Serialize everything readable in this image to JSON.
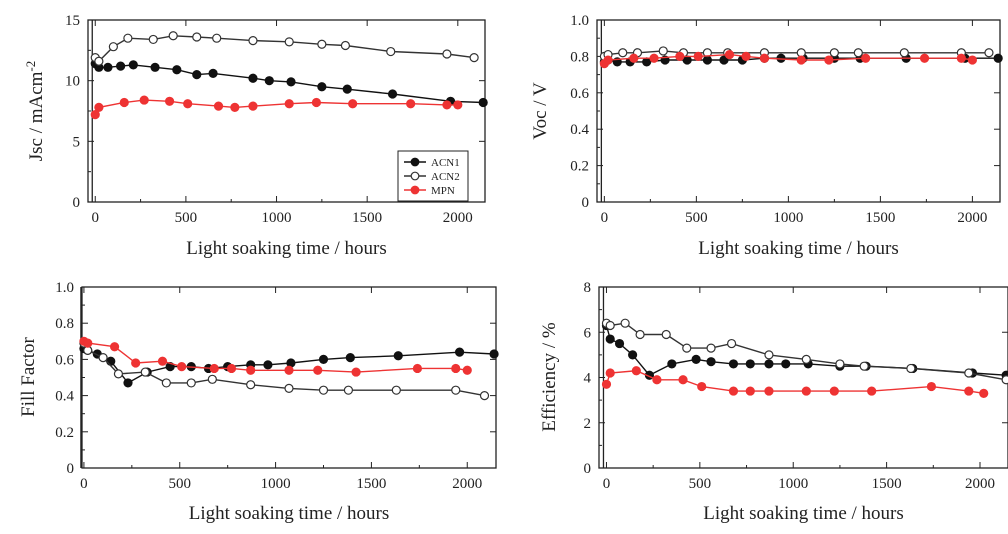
{
  "colors": {
    "acn1": "#111111",
    "acn2": "#333333",
    "mpn": "#ee3333",
    "axis": "#222222"
  },
  "legend": {
    "entries": [
      "ACN1",
      "ACN2",
      "MPN"
    ]
  },
  "chart_data": [
    {
      "id": "jsc",
      "type": "line",
      "ylabel": "Jsc / mAcm",
      "ylabel_sup": "-2",
      "xlabel": "Light soaking time / hours",
      "xlim": [
        -40,
        2150
      ],
      "ylim": [
        0,
        15
      ],
      "xticks": [
        "0",
        "500",
        "1000",
        "1500",
        "2000"
      ],
      "xtick_values": [
        0,
        500,
        1000,
        1500,
        2000
      ],
      "yticks": [
        "0",
        "5",
        "10",
        "15"
      ],
      "ytick_values": [
        0,
        5,
        10,
        15
      ],
      "legend": "inside lower-right",
      "series": [
        {
          "name": "ACN1",
          "marker": "filled",
          "color": "#111111",
          "x": [
            0,
            20,
            70,
            140,
            210,
            330,
            450,
            560,
            650,
            870,
            960,
            1080,
            1250,
            1390,
            1640,
            1960,
            2140
          ],
          "y": [
            11.4,
            11.1,
            11.1,
            11.2,
            11.3,
            11.1,
            10.9,
            10.5,
            10.6,
            10.2,
            10.0,
            9.9,
            9.5,
            9.3,
            8.9,
            8.3,
            8.2
          ]
        },
        {
          "name": "ACN2",
          "marker": "open",
          "color": "#333333",
          "x": [
            0,
            20,
            100,
            180,
            320,
            430,
            560,
            670,
            870,
            1070,
            1250,
            1380,
            1630,
            1940,
            2090
          ],
          "y": [
            11.9,
            11.6,
            12.8,
            13.5,
            13.4,
            13.7,
            13.6,
            13.5,
            13.3,
            13.2,
            13.0,
            12.9,
            12.4,
            12.2,
            11.9
          ]
        },
        {
          "name": "MPN",
          "marker": "filled",
          "color": "#ee3333",
          "x": [
            0,
            20,
            160,
            270,
            410,
            510,
            680,
            770,
            870,
            1070,
            1220,
            1420,
            1740,
            1940,
            2000
          ],
          "y": [
            7.2,
            7.8,
            8.2,
            8.4,
            8.3,
            8.1,
            7.9,
            7.8,
            7.9,
            8.1,
            8.2,
            8.1,
            8.1,
            8.0,
            8.0
          ]
        }
      ]
    },
    {
      "id": "voc",
      "type": "line",
      "ylabel": "Voc / V",
      "xlabel": "Light soaking time / hours",
      "xlim": [
        -40,
        2150
      ],
      "ylim": [
        0,
        1.0
      ],
      "xticks": [
        "0",
        "500",
        "1000",
        "1500",
        "2000"
      ],
      "xtick_values": [
        0,
        500,
        1000,
        1500,
        2000
      ],
      "yticks": [
        "0",
        "0.2",
        "0.4",
        "0.6",
        "0.8",
        "1.0"
      ],
      "ytick_values": [
        0,
        0.2,
        0.4,
        0.6,
        0.8,
        1.0
      ],
      "series": [
        {
          "name": "ACN1",
          "marker": "filled",
          "color": "#111111",
          "x": [
            0,
            20,
            70,
            140,
            230,
            330,
            450,
            560,
            650,
            750,
            870,
            960,
            1080,
            1250,
            1390,
            1640,
            1960,
            2140
          ],
          "y": [
            0.77,
            0.78,
            0.77,
            0.77,
            0.77,
            0.78,
            0.78,
            0.78,
            0.78,
            0.78,
            0.79,
            0.79,
            0.79,
            0.79,
            0.79,
            0.79,
            0.79,
            0.79
          ]
        },
        {
          "name": "ACN2",
          "marker": "open",
          "color": "#333333",
          "x": [
            0,
            20,
            100,
            180,
            320,
            430,
            560,
            670,
            870,
            1070,
            1250,
            1380,
            1630,
            1940,
            2090
          ],
          "y": [
            0.8,
            0.81,
            0.82,
            0.82,
            0.83,
            0.82,
            0.82,
            0.82,
            0.82,
            0.82,
            0.82,
            0.82,
            0.82,
            0.82,
            0.82
          ]
        },
        {
          "name": "MPN",
          "marker": "filled",
          "color": "#ee3333",
          "x": [
            0,
            20,
            160,
            270,
            410,
            510,
            680,
            770,
            870,
            1070,
            1220,
            1420,
            1740,
            1940,
            2000
          ],
          "y": [
            0.76,
            0.78,
            0.79,
            0.79,
            0.8,
            0.8,
            0.81,
            0.8,
            0.79,
            0.78,
            0.78,
            0.79,
            0.79,
            0.79,
            0.78
          ]
        }
      ]
    },
    {
      "id": "ff",
      "type": "line",
      "ylabel": "Fill Factor",
      "xlabel": "Light soaking time / hours",
      "xlim": [
        -10,
        2150
      ],
      "ylim": [
        0,
        1.0
      ],
      "xticks": [
        "0",
        "500",
        "1000",
        "1500",
        "2000"
      ],
      "xtick_values": [
        0,
        500,
        1000,
        1500,
        2000
      ],
      "yticks": [
        "0",
        "0.2",
        "0.4",
        "0.6",
        "0.8",
        "1.0"
      ],
      "ytick_values": [
        0,
        0.2,
        0.4,
        0.6,
        0.8,
        1.0
      ],
      "series": [
        {
          "name": "ACN1",
          "marker": "filled",
          "color": "#111111",
          "x": [
            0,
            20,
            70,
            140,
            230,
            330,
            450,
            560,
            650,
            750,
            870,
            960,
            1080,
            1250,
            1390,
            1640,
            1960,
            2140
          ],
          "y": [
            0.66,
            0.65,
            0.63,
            0.59,
            0.47,
            0.53,
            0.56,
            0.56,
            0.55,
            0.56,
            0.57,
            0.57,
            0.58,
            0.6,
            0.61,
            0.62,
            0.64,
            0.63
          ]
        },
        {
          "name": "ACN2",
          "marker": "open",
          "color": "#333333",
          "x": [
            0,
            20,
            100,
            180,
            320,
            430,
            560,
            670,
            870,
            1070,
            1250,
            1380,
            1630,
            1940,
            2090
          ],
          "y": [
            0.69,
            0.65,
            0.61,
            0.52,
            0.53,
            0.47,
            0.47,
            0.49,
            0.46,
            0.44,
            0.43,
            0.43,
            0.43,
            0.43,
            0.4
          ]
        },
        {
          "name": "MPN",
          "marker": "filled",
          "color": "#ee3333",
          "x": [
            0,
            20,
            160,
            270,
            410,
            510,
            680,
            770,
            870,
            1070,
            1220,
            1420,
            1740,
            1940,
            2000
          ],
          "y": [
            0.7,
            0.69,
            0.67,
            0.58,
            0.59,
            0.56,
            0.55,
            0.55,
            0.54,
            0.54,
            0.54,
            0.53,
            0.55,
            0.55,
            0.54
          ]
        }
      ]
    },
    {
      "id": "eff",
      "type": "line",
      "ylabel": "Efficiency / %",
      "xlabel": "Light soaking time / hours",
      "xlim": [
        -40,
        2150
      ],
      "ylim": [
        0,
        8
      ],
      "xticks": [
        "0",
        "500",
        "1000",
        "1500",
        "2000"
      ],
      "xtick_values": [
        0,
        500,
        1000,
        1500,
        2000
      ],
      "yticks": [
        "0",
        "2",
        "4",
        "6",
        "8"
      ],
      "ytick_values": [
        0,
        2,
        4,
        6,
        8
      ],
      "series": [
        {
          "name": "ACN1",
          "marker": "filled",
          "color": "#111111",
          "x": [
            0,
            20,
            70,
            140,
            230,
            350,
            480,
            560,
            680,
            770,
            870,
            960,
            1080,
            1250,
            1390,
            1640,
            1960,
            2140
          ],
          "y": [
            6.3,
            5.7,
            5.5,
            5.0,
            4.1,
            4.6,
            4.8,
            4.7,
            4.6,
            4.6,
            4.6,
            4.6,
            4.6,
            4.5,
            4.5,
            4.4,
            4.2,
            4.1
          ]
        },
        {
          "name": "ACN2",
          "marker": "open",
          "color": "#333333",
          "x": [
            0,
            20,
            100,
            180,
            320,
            430,
            560,
            670,
            870,
            1070,
            1250,
            1380,
            1630,
            1940,
            2140
          ],
          "y": [
            6.4,
            6.3,
            6.4,
            5.9,
            5.9,
            5.3,
            5.3,
            5.5,
            5.0,
            4.8,
            4.6,
            4.5,
            4.4,
            4.2,
            3.9
          ]
        },
        {
          "name": "MPN",
          "marker": "filled",
          "color": "#ee3333",
          "x": [
            0,
            20,
            160,
            270,
            410,
            510,
            680,
            770,
            870,
            1070,
            1220,
            1420,
            1740,
            1940,
            2020
          ],
          "y": [
            3.7,
            4.2,
            4.3,
            3.9,
            3.9,
            3.6,
            3.4,
            3.4,
            3.4,
            3.4,
            3.4,
            3.4,
            3.6,
            3.4,
            3.3
          ]
        }
      ]
    }
  ]
}
